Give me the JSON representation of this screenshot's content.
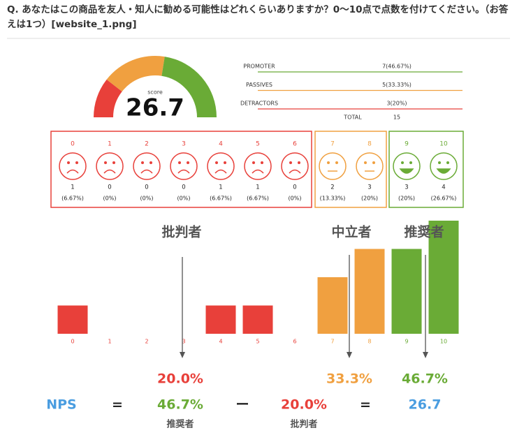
{
  "question": "Q. あなたはこの商品を友人・知人に勧める可能性はどれくらいありますか？0〜10点で点数を付けてください。（お答えは1つ）[website_1.png]",
  "gauge": {
    "label": "score",
    "value": "26.7"
  },
  "summary": {
    "rows": [
      {
        "label": "PROMOTER",
        "value": "7(46.67%)"
      },
      {
        "label": "PASSIVES",
        "value": "5(33.33%)"
      },
      {
        "label": "DETRACTORS",
        "value": "3(20%)"
      }
    ],
    "total_label": "TOTAL",
    "total": "15"
  },
  "scores": [
    {
      "score": 0,
      "count": 1,
      "percent": "(6.67%)"
    },
    {
      "score": 1,
      "count": 0,
      "percent": "(0%)"
    },
    {
      "score": 2,
      "count": 0,
      "percent": "(0%)"
    },
    {
      "score": 3,
      "count": 0,
      "percent": "(0%)"
    },
    {
      "score": 4,
      "count": 1,
      "percent": "(6.67%)"
    },
    {
      "score": 5,
      "count": 1,
      "percent": "(6.67%)"
    },
    {
      "score": 6,
      "count": 0,
      "percent": "(0%)"
    },
    {
      "score": 7,
      "count": 2,
      "percent": "(13.33%)"
    },
    {
      "score": 8,
      "count": 3,
      "percent": "(20%)"
    },
    {
      "score": 9,
      "count": 3,
      "percent": "(20%)"
    },
    {
      "score": 10,
      "count": 4,
      "percent": "(26.67%)"
    }
  ],
  "group_labels": {
    "detractors": "批判者",
    "passives": "中立者",
    "promoters": "推奨者"
  },
  "group_percentages": {
    "detractors": "20.0%",
    "passives": "33.3%",
    "promoters": "46.7%"
  },
  "formula": {
    "nps": "NPS",
    "equals": "=",
    "promoters": "46.7%",
    "minus": "ー",
    "detractors": "20.0%",
    "equals_2": "=",
    "result": "26.7",
    "promoters_label": "推奨者",
    "detractors_label": "批判者"
  }
}
